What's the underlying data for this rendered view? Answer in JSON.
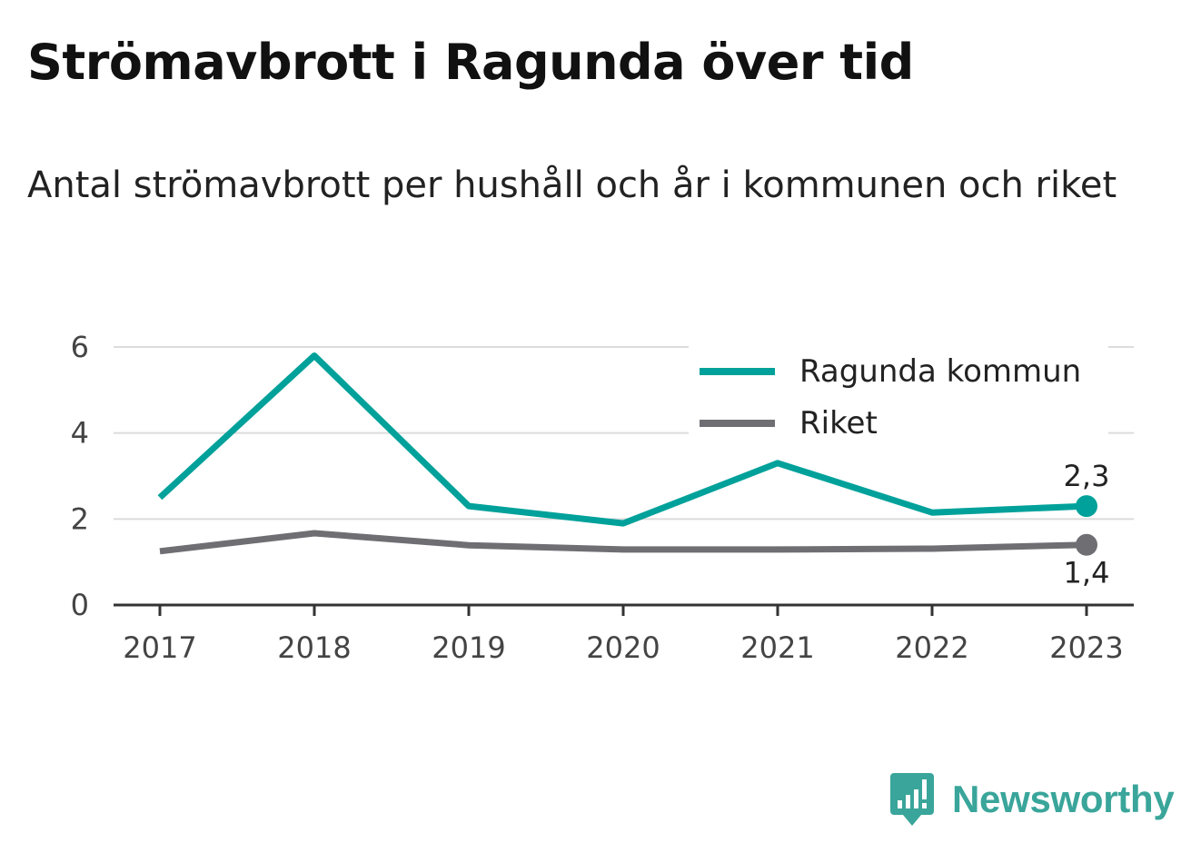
{
  "title": "Strömavbrott i Ragunda över tid",
  "subtitle": "Antal strömavbrott per hushåll och år i kommunen och riket",
  "brand": {
    "name": "Newsworthy",
    "color": "#3aa59a",
    "icon": "newsworthy-logo-icon"
  },
  "chart_data": {
    "type": "line",
    "title": "Strömavbrott i Ragunda över tid",
    "subtitle": "Antal strömavbrott per hushåll och år i kommunen och riket",
    "xlabel": "",
    "ylabel": "",
    "categories": [
      "2017",
      "2018",
      "2019",
      "2020",
      "2021",
      "2022",
      "2023"
    ],
    "ylim": [
      0,
      6
    ],
    "yticks": [
      0,
      2,
      4,
      6
    ],
    "grid": true,
    "legend": "top-right",
    "series": [
      {
        "name": "Ragunda kommun",
        "color": "#00a19a",
        "values": [
          2.5,
          5.8,
          2.3,
          1.9,
          3.3,
          2.15,
          2.3
        ],
        "end_label": "2,3"
      },
      {
        "name": "Riket",
        "color": "#6f6e73",
        "values": [
          1.25,
          1.67,
          1.39,
          1.29,
          1.29,
          1.31,
          1.4
        ],
        "end_label": "1,4"
      }
    ]
  }
}
